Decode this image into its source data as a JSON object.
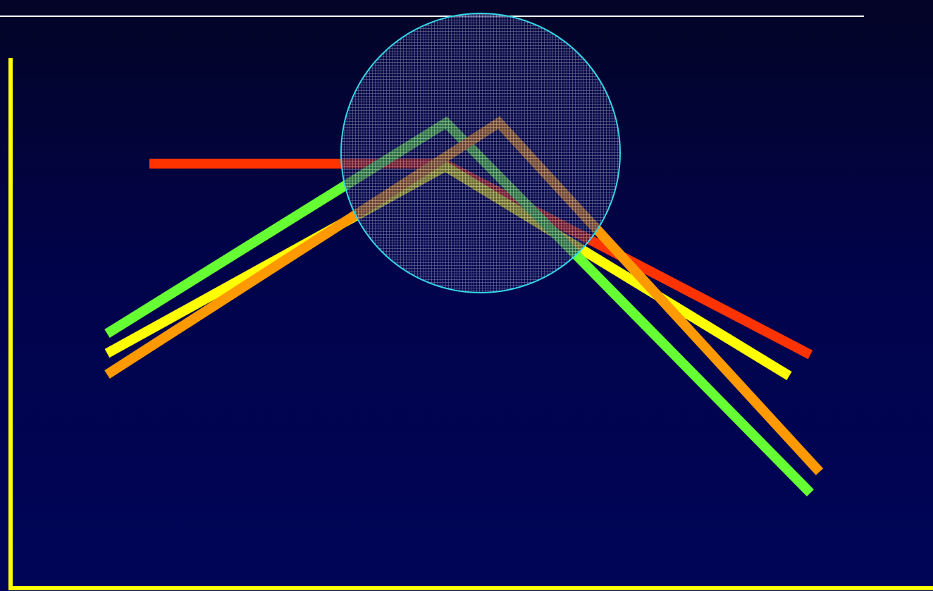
{
  "chart_data": {
    "type": "line",
    "title": "",
    "xlabel": "",
    "ylabel": "",
    "axes_color": "#ffff00",
    "background": {
      "top": "#030426",
      "bottom": "#000557"
    },
    "header_rule_color": "#ffffff",
    "highlight": {
      "shape": "circle",
      "stroke": "#33d6e8",
      "fill_pattern": "crosshatch",
      "fill_color": "#b4b4d2"
    },
    "series": [
      {
        "color": "#ff3300"
      },
      {
        "color": "#ffff00"
      },
      {
        "color": "#66ff33"
      },
      {
        "color": "#ff9900"
      }
    ]
  }
}
